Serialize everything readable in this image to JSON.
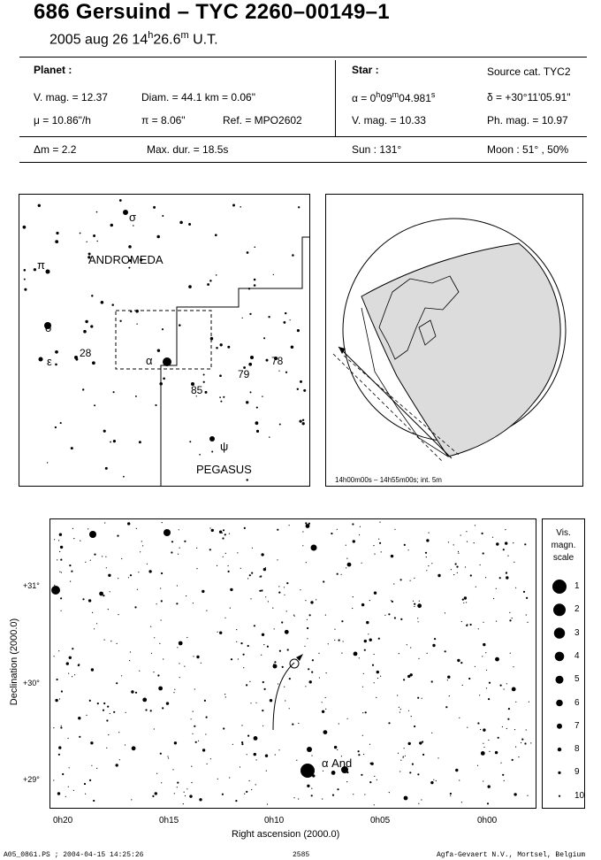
{
  "header": {
    "title": "686 Gersuind  –  TYC 2260–00149–1",
    "date_prefix": "2005 aug 26  14",
    "hour_sup": "h",
    "minutes": "26.6",
    "min_sup": "m",
    "ut": " U.T."
  },
  "planet": {
    "heading": "Planet :",
    "vmag": "V. mag. = 12.37",
    "diam": "Diam. = 44.1 km = 0.06\"",
    "mu": "μ =  10.86\"/h",
    "pi": "π =  8.06\"",
    "ref": "Ref. = MPO2602"
  },
  "star": {
    "heading": "Star :",
    "source": "Source cat.  TYC2",
    "alpha_prefix": "α =  0",
    "alpha_h": "h",
    "alpha_mid": "09",
    "alpha_m": "m",
    "alpha_sec": "04.981",
    "alpha_s": "s",
    "delta": "δ = +30°11'05.91\"",
    "vmag": "V. mag. = 10.33",
    "phmag": "Ph. mag. = 10.97"
  },
  "footer_row": {
    "dm": "Δm = 2.2",
    "maxdur": "Max. dur. = 18.5s",
    "sun": "Sun : 131°",
    "moon": "Moon :  51° , 50%"
  },
  "finder": {
    "andromeda": "ANDROMEDA",
    "pegasus": "PEGASUS",
    "greek": [
      "σ",
      "π",
      "δ",
      "ε",
      "α",
      "ψ"
    ],
    "numbers": [
      "28",
      "79",
      "78",
      "85"
    ]
  },
  "globe": {
    "caption": "14h00m00s – 14h55m00s; int.  5m"
  },
  "detail": {
    "ylabel": "Declination (2000.0)",
    "xlabel": "Right ascension (2000.0)",
    "yticks": [
      "+31°",
      "+30°",
      "+29°"
    ],
    "xticks": [
      "0h20",
      "0h15",
      "0h10",
      "0h05",
      "0h00"
    ],
    "star_label": "α  And"
  },
  "legend": {
    "title": [
      "Vis.",
      "magn.",
      "scale"
    ],
    "mags": [
      "1",
      "2",
      "3",
      "4",
      "5",
      "6",
      "7",
      "8",
      "9",
      "10"
    ]
  },
  "bottom_line": {
    "left": "A05_0861.PS ; 2004-04-15 14:25:26",
    "center": "2585",
    "right": "Agfa-Gevaert N.V., Mortsel, Belgium"
  }
}
